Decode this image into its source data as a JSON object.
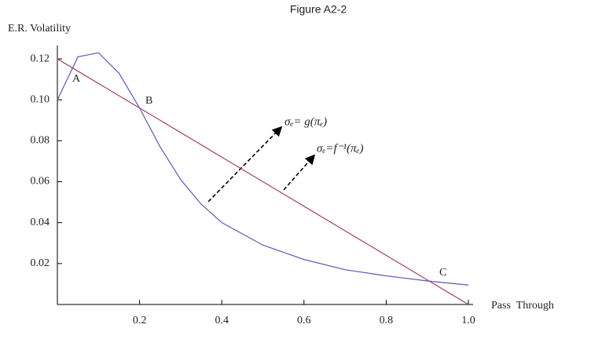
{
  "chart_data": {
    "type": "line",
    "title": "Figure A2-2",
    "y_label": "E.R. Volatility",
    "x_label": "Pass  Through",
    "x": [
      0,
      0.05,
      0.1,
      0.15,
      0.2,
      0.25,
      0.3,
      0.35,
      0.4,
      0.5,
      0.6,
      0.7,
      0.8,
      0.9,
      1.0
    ],
    "series": [
      {
        "name": "g",
        "color": "#5a5ab8",
        "values": [
          0.1,
          0.121,
          0.123,
          0.113,
          0.096,
          0.077,
          0.061,
          0.049,
          0.04,
          0.029,
          0.022,
          0.017,
          0.014,
          0.0115,
          0.0095
        ]
      },
      {
        "name": "f-1",
        "color": "#a3406c",
        "values": [
          0.12,
          0.114,
          0.108,
          0.102,
          0.096,
          0.09,
          0.084,
          0.078,
          0.072,
          0.06,
          0.048,
          0.036,
          0.024,
          0.012,
          0
        ]
      }
    ],
    "xlim": [
      0,
      1.0
    ],
    "ylim": [
      0,
      0.125
    ],
    "xticks": [
      0.2,
      0.4,
      0.6,
      0.8,
      {
        "value": 1.0,
        "label": "1.0"
      }
    ],
    "yticks": [
      0.02,
      0.04,
      0.06,
      0.08,
      {
        "value": 0.1,
        "label": "0.10"
      },
      0.12
    ],
    "annotations": [
      "A",
      "B",
      "C",
      "σₑ= g(πₑ)",
      "σₑ=f⁻¹(πₑ)"
    ]
  }
}
